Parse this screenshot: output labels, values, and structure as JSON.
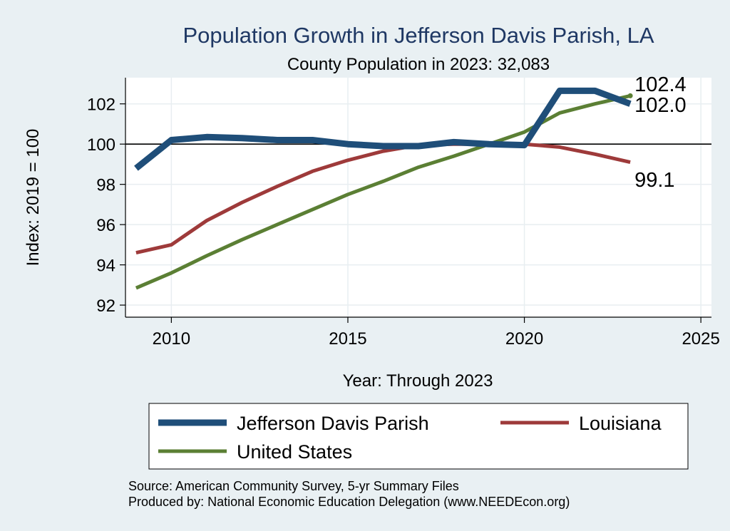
{
  "chart_data": {
    "type": "line",
    "title": "Population Growth in Jefferson Davis Parish, LA",
    "subtitle": "County Population in 2023: 32,083",
    "xlabel": "Year: Through 2023",
    "ylabel": "Index: 2019 = 100",
    "xlim": [
      2008.7,
      2025.3
    ],
    "ylim": [
      91.4,
      103.3
    ],
    "xticks": [
      2010,
      2015,
      2020,
      2025
    ],
    "yticks": [
      92,
      94,
      96,
      98,
      100,
      102
    ],
    "reference_line": 100,
    "x": [
      2009,
      2010,
      2011,
      2012,
      2013,
      2014,
      2015,
      2016,
      2017,
      2018,
      2019,
      2020,
      2021,
      2022,
      2023
    ],
    "series": [
      {
        "name": "Jefferson Davis Parish",
        "color": "#1f4e79",
        "values": [
          98.8,
          100.2,
          100.35,
          100.3,
          100.2,
          100.2,
          100.0,
          99.9,
          99.9,
          100.1,
          100.0,
          99.95,
          102.65,
          102.65,
          102.0
        ],
        "end_label": "102.0"
      },
      {
        "name": "Louisiana",
        "color": "#9e3a3a",
        "values": [
          94.6,
          95.0,
          96.2,
          97.1,
          97.9,
          98.65,
          99.2,
          99.65,
          99.95,
          100.0,
          100.0,
          100.0,
          99.85,
          99.5,
          99.1
        ],
        "end_label": "99.1"
      },
      {
        "name": "United States",
        "color": "#5b7f34",
        "values": [
          92.85,
          93.6,
          94.45,
          95.25,
          96.0,
          96.75,
          97.5,
          98.15,
          98.85,
          99.4,
          100.0,
          100.6,
          101.55,
          102.0,
          102.4
        ],
        "end_label": "102.4"
      }
    ],
    "legend": {
      "position": "bottom",
      "entries": [
        "Jefferson Davis Parish",
        "Louisiana",
        "United States"
      ]
    },
    "notes": [
      "Source: American Community Survey, 5-yr Summary Files",
      "Produced by: National Economic Education Delegation (www.NEEDEcon.org)"
    ]
  }
}
